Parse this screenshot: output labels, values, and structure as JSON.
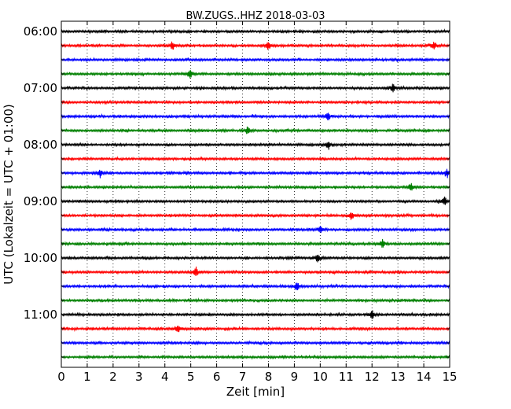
{
  "chart_data": {
    "type": "line",
    "title": "BW.ZUGS..HHZ 2018-03-03",
    "xlabel": "Zeit  [min]",
    "ylabel": "UTC (Lokalzeit = UTC + 01:00)",
    "xlim": [
      0,
      15
    ],
    "xticks": [
      "0",
      "1",
      "2",
      "3",
      "4",
      "5",
      "6",
      "7",
      "8",
      "9",
      "10",
      "11",
      "12",
      "13",
      "14",
      "15"
    ],
    "yticks": [
      "06:00",
      "07:00",
      "08:00",
      "09:00",
      "10:00",
      "11:00"
    ],
    "grid": "vertical dotted",
    "trace_interval_minutes": 15,
    "colors": [
      "#000000",
      "#ff0000",
      "#0000ff",
      "#008000"
    ],
    "traces": [
      {
        "start": "06:00",
        "events": []
      },
      {
        "start": "06:15",
        "events": [
          4.3,
          8.0,
          14.4
        ]
      },
      {
        "start": "06:30",
        "events": []
      },
      {
        "start": "06:45",
        "events": [
          4.95
        ]
      },
      {
        "start": "07:00",
        "events": [
          12.8
        ]
      },
      {
        "start": "07:15",
        "events": []
      },
      {
        "start": "07:30",
        "events": [
          10.3
        ]
      },
      {
        "start": "07:45",
        "events": [
          7.2
        ]
      },
      {
        "start": "08:00",
        "events": [
          10.3
        ]
      },
      {
        "start": "08:15",
        "events": []
      },
      {
        "start": "08:30",
        "events": [
          1.5,
          14.9
        ]
      },
      {
        "start": "08:45",
        "events": [
          13.5
        ]
      },
      {
        "start": "09:00",
        "events": [
          14.8
        ]
      },
      {
        "start": "09:15",
        "events": [
          11.2
        ]
      },
      {
        "start": "09:30",
        "events": [
          10.0
        ]
      },
      {
        "start": "09:45",
        "events": [
          12.4
        ]
      },
      {
        "start": "10:00",
        "events": [
          9.9
        ]
      },
      {
        "start": "10:15",
        "events": [
          5.2
        ]
      },
      {
        "start": "10:30",
        "events": [
          9.1
        ]
      },
      {
        "start": "10:45",
        "events": []
      },
      {
        "start": "11:00",
        "events": [
          12.0
        ]
      },
      {
        "start": "11:15",
        "events": [
          4.5
        ]
      },
      {
        "start": "11:30",
        "events": []
      },
      {
        "start": "11:45",
        "events": []
      }
    ]
  }
}
